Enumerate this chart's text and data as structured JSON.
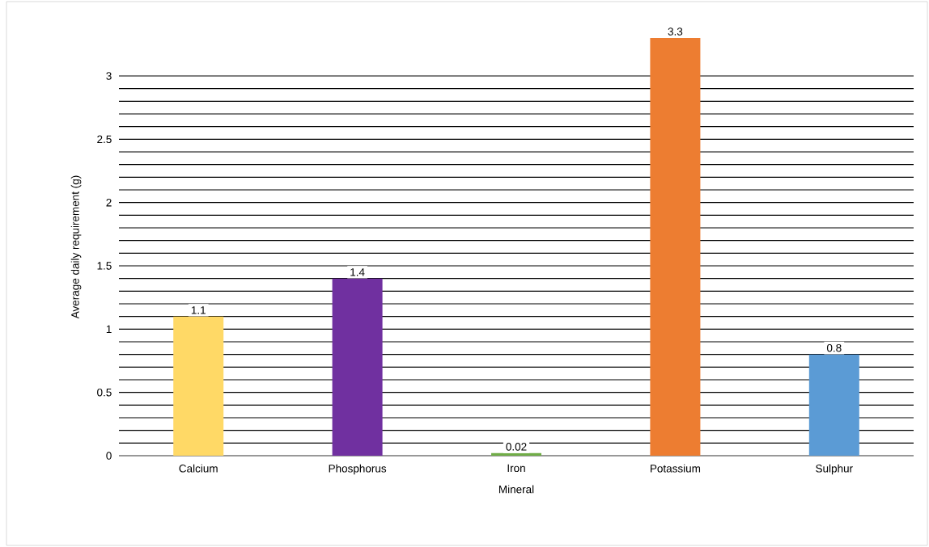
{
  "chart_data": {
    "type": "bar",
    "xlabel": "Mineral",
    "ylabel": "Average daily requirement (g)",
    "categories": [
      "Calcium",
      "Phosphorus",
      "Iron",
      "Potassium",
      "Sulphur"
    ],
    "values": [
      1.1,
      1.4,
      0.02,
      3.3,
      0.8
    ],
    "colors": [
      "#ffd966",
      "#7030a0",
      "#70ad47",
      "#ed7d31",
      "#5b9bd5"
    ],
    "ylim": [
      0,
      3.3
    ],
    "yticks": [
      0,
      0.5,
      1,
      1.5,
      2,
      2.5,
      3
    ],
    "value_labels": [
      "1.1",
      "1.4",
      "0.02",
      "3.3",
      "0.8"
    ],
    "grid": "y"
  }
}
